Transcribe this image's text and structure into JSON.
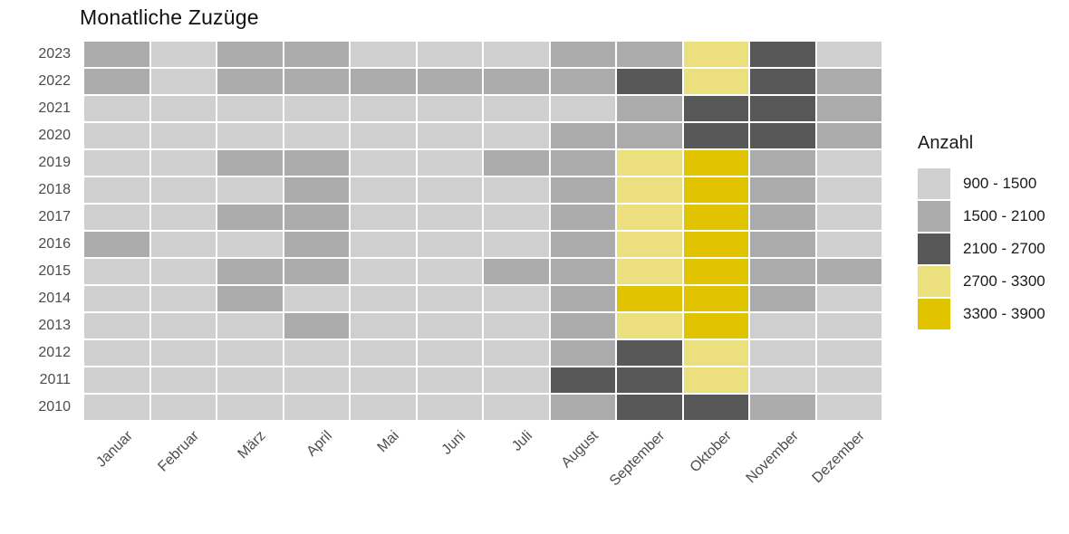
{
  "title": "Monatliche Zuzüge",
  "legend": {
    "title": "Anzahl",
    "items": [
      {
        "label": "900 - 1500",
        "color": "#cfcfcf"
      },
      {
        "label": "1500 - 2100",
        "color": "#ababab"
      },
      {
        "label": "2100 - 2700",
        "color": "#585858"
      },
      {
        "label": "2700 - 3300",
        "color": "#ecdf7e"
      },
      {
        "label": "3300 - 3900",
        "color": "#e2c300"
      }
    ]
  },
  "chart_data": {
    "type": "heatmap",
    "title": "Monatliche Zuzüge",
    "xlabel": "",
    "ylabel": "",
    "legend_title": "Anzahl",
    "legend_position": "right",
    "x_label_rotation": 45,
    "grid_gap_color": "#ffffff",
    "x": [
      "Januar",
      "Februar",
      "März",
      "April",
      "Mai",
      "Juni",
      "Juli",
      "August",
      "September",
      "Oktober",
      "November",
      "Dezember"
    ],
    "y": [
      "2023",
      "2022",
      "2021",
      "2020",
      "2019",
      "2018",
      "2017",
      "2016",
      "2015",
      "2014",
      "2013",
      "2012",
      "2011",
      "2010"
    ],
    "bins": [
      {
        "index": 1,
        "label": "900 - 1500",
        "color": "#cfcfcf"
      },
      {
        "index": 2,
        "label": "1500 - 2100",
        "color": "#ababab"
      },
      {
        "index": 3,
        "label": "2100 - 2700",
        "color": "#585858"
      },
      {
        "index": 4,
        "label": "2700 - 3300",
        "color": "#ecdf7e"
      },
      {
        "index": 5,
        "label": "3300 - 3900",
        "color": "#e2c300"
      }
    ],
    "values": [
      [
        2,
        1,
        2,
        2,
        1,
        1,
        1,
        2,
        2,
        4,
        3,
        1
      ],
      [
        2,
        1,
        2,
        2,
        2,
        2,
        2,
        2,
        3,
        4,
        3,
        2
      ],
      [
        1,
        1,
        1,
        1,
        1,
        1,
        1,
        1,
        2,
        3,
        3,
        2
      ],
      [
        1,
        1,
        1,
        1,
        1,
        1,
        1,
        2,
        2,
        3,
        3,
        2
      ],
      [
        1,
        1,
        2,
        2,
        1,
        1,
        2,
        2,
        4,
        5,
        2,
        1
      ],
      [
        1,
        1,
        1,
        2,
        1,
        1,
        1,
        2,
        4,
        5,
        2,
        1
      ],
      [
        1,
        1,
        2,
        2,
        1,
        1,
        1,
        2,
        4,
        5,
        2,
        1
      ],
      [
        2,
        1,
        1,
        2,
        1,
        1,
        1,
        2,
        4,
        5,
        2,
        1
      ],
      [
        1,
        1,
        2,
        2,
        1,
        1,
        2,
        2,
        4,
        5,
        2,
        2
      ],
      [
        1,
        1,
        2,
        1,
        1,
        1,
        1,
        2,
        5,
        5,
        2,
        1
      ],
      [
        1,
        1,
        1,
        2,
        1,
        1,
        1,
        2,
        4,
        5,
        1,
        1
      ],
      [
        1,
        1,
        1,
        1,
        1,
        1,
        1,
        2,
        3,
        4,
        1,
        1
      ],
      [
        1,
        1,
        1,
        1,
        1,
        1,
        1,
        3,
        3,
        4,
        1,
        1
      ],
      [
        1,
        1,
        1,
        1,
        1,
        1,
        1,
        2,
        3,
        3,
        2,
        1
      ]
    ]
  }
}
